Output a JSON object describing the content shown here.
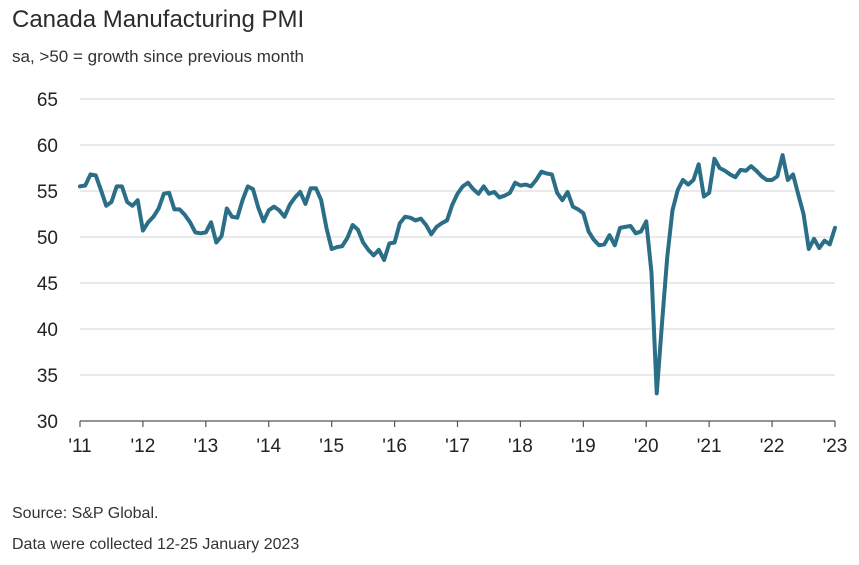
{
  "chart_data": {
    "type": "line",
    "title": "Canada Manufacturing PMI",
    "subtitle": "sa, >50 = growth since previous month",
    "xlabel": "",
    "ylabel": "",
    "ylim": [
      30,
      65
    ],
    "y_ticks": [
      "65",
      "60",
      "55",
      "50",
      "45",
      "40",
      "35",
      "30"
    ],
    "x_ticks": [
      "'11",
      "'12",
      "'13",
      "'14",
      "'15",
      "'16",
      "'17",
      "'18",
      "'19",
      "'20",
      "'21",
      "'22",
      "'23"
    ],
    "grid": "horizontal",
    "series": [
      {
        "name": "Canada Manufacturing PMI",
        "color": "#2a6e87",
        "start": "2011-01",
        "frequency": "monthly",
        "values": [
          55.5,
          55.6,
          56.8,
          56.7,
          55.1,
          53.4,
          53.8,
          55.5,
          55.5,
          53.8,
          53.4,
          54.0,
          50.7,
          51.6,
          52.2,
          53.1,
          54.7,
          54.8,
          53.0,
          53.0,
          52.4,
          51.6,
          50.5,
          50.4,
          50.5,
          51.6,
          49.4,
          50.1,
          53.1,
          52.2,
          52.1,
          54.0,
          55.5,
          55.2,
          53.2,
          51.7,
          52.9,
          53.3,
          52.9,
          52.2,
          53.5,
          54.3,
          54.9,
          53.6,
          55.3,
          55.3,
          54.0,
          51.0,
          48.7,
          48.9,
          49.0,
          49.9,
          51.3,
          50.8,
          49.4,
          48.6,
          48.0,
          48.6,
          47.5,
          49.3,
          49.4,
          51.5,
          52.2,
          52.1,
          51.8,
          52.0,
          51.3,
          50.3,
          51.1,
          51.5,
          51.8,
          53.5,
          54.7,
          55.5,
          55.9,
          55.2,
          54.7,
          55.5,
          54.7,
          54.9,
          54.3,
          54.5,
          54.8,
          55.9,
          55.6,
          55.7,
          55.5,
          56.2,
          57.1,
          56.9,
          56.8,
          54.8,
          54.0,
          54.9,
          53.3,
          53.0,
          52.6,
          50.6,
          49.7,
          49.1,
          49.2,
          50.2,
          49.1,
          51.0,
          51.1,
          51.2,
          50.4,
          50.6,
          51.7,
          46.1,
          33.0,
          40.6,
          47.8,
          52.9,
          55.1,
          56.2,
          55.7,
          56.2,
          57.9,
          54.4,
          54.8,
          58.5,
          57.5,
          57.2,
          56.8,
          56.5,
          57.3,
          57.2,
          57.7,
          57.2,
          56.6,
          56.2,
          56.2,
          56.6,
          58.9,
          56.2,
          56.8,
          54.6,
          52.5,
          48.7,
          49.8,
          48.8,
          49.6,
          49.2,
          51.0
        ]
      }
    ]
  },
  "footer": {
    "source": "Source: S&P Global.",
    "note": "Data were collected 12-25 January 2023"
  }
}
